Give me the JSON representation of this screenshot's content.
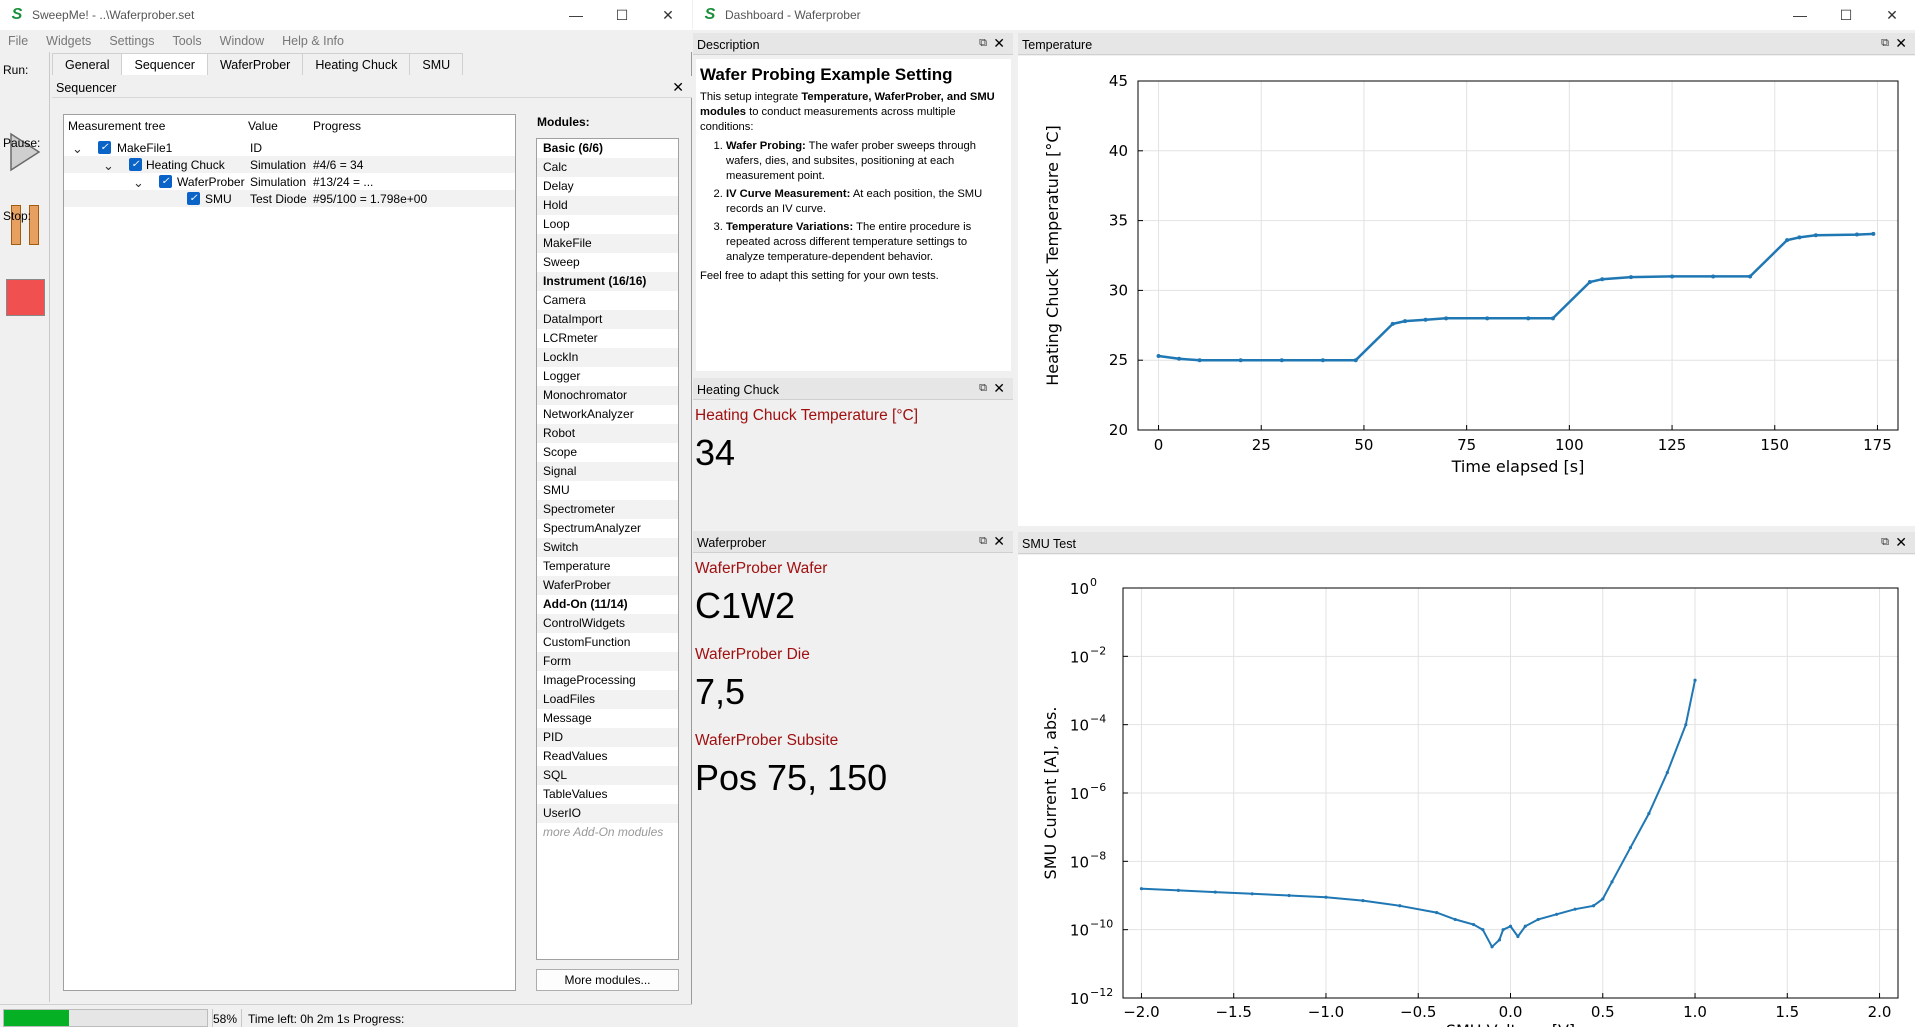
{
  "left_window": {
    "title": "SweepMe! - ..\\Waferprober.set",
    "menu": [
      "File",
      "Widgets",
      "Settings",
      "Tools",
      "Window",
      "Help & Info"
    ],
    "run_label": "Run:",
    "pause_label": "Pause:",
    "stop_label": "Stop:",
    "tabs": [
      {
        "label": "General",
        "active": false
      },
      {
        "label": "Sequencer",
        "active": true
      },
      {
        "label": "WaferProber",
        "active": false
      },
      {
        "label": "Heating Chuck",
        "active": false
      },
      {
        "label": "SMU",
        "active": false
      }
    ],
    "sequencer_title": "Sequencer",
    "tree": {
      "headers": {
        "name": "Measurement tree",
        "value": "Value",
        "progress": "Progress"
      },
      "rows": [
        {
          "name": "MakeFile1",
          "value": "ID",
          "progress": ""
        },
        {
          "name": "Heating Chuck",
          "value": "Simulation",
          "progress": "#4/6 = 34"
        },
        {
          "name": "WaferProber",
          "value": "Simulation",
          "progress": "#13/24 = ..."
        },
        {
          "name": "SMU",
          "value": "Test Diode",
          "progress": "#95/100 = 1.798e+00"
        }
      ]
    },
    "modules_title": "Modules:",
    "modules": [
      {
        "label": "Basic (6/6)",
        "category": true
      },
      {
        "label": "Calc"
      },
      {
        "label": "Delay"
      },
      {
        "label": "Hold"
      },
      {
        "label": "Loop"
      },
      {
        "label": "MakeFile"
      },
      {
        "label": "Sweep"
      },
      {
        "label": "Instrument (16/16)",
        "category": true
      },
      {
        "label": "Camera"
      },
      {
        "label": "DataImport"
      },
      {
        "label": "LCRmeter"
      },
      {
        "label": "LockIn"
      },
      {
        "label": "Logger"
      },
      {
        "label": "Monochromator"
      },
      {
        "label": "NetworkAnalyzer"
      },
      {
        "label": "Robot"
      },
      {
        "label": "Scope"
      },
      {
        "label": "Signal"
      },
      {
        "label": "SMU"
      },
      {
        "label": "Spectrometer"
      },
      {
        "label": "SpectrumAnalyzer"
      },
      {
        "label": "Switch"
      },
      {
        "label": "Temperature"
      },
      {
        "label": "WaferProber"
      },
      {
        "label": "Add-On (11/14)",
        "category": true
      },
      {
        "label": "ControlWidgets"
      },
      {
        "label": "CustomFunction"
      },
      {
        "label": "Form"
      },
      {
        "label": "ImageProcessing"
      },
      {
        "label": "LoadFiles"
      },
      {
        "label": "Message"
      },
      {
        "label": "PID"
      },
      {
        "label": "ReadValues"
      },
      {
        "label": "SQL"
      },
      {
        "label": "TableValues"
      },
      {
        "label": "UserIO"
      },
      {
        "label": "more Add-On modules",
        "more": true
      }
    ],
    "more_modules_button": "More modules...",
    "status": {
      "progress_percent": 58,
      "progress_text": "58%",
      "time_left": "Time left: 0h 2m 1s",
      "progress_label": "Progress:"
    }
  },
  "right_window": {
    "title": "Dashboard - Waferprober",
    "description": {
      "panel_title": "Description",
      "heading": "Wafer Probing Example Setting",
      "intro_prefix": "This setup integrate ",
      "intro_bold": "Temperature, WaferProber, and SMU modules",
      "intro_suffix": " to conduct measurements across multiple conditions:",
      "items": [
        {
          "bold": "Wafer Probing:",
          "text": " The wafer prober sweeps through wafers, dies, and subsites, positioning at each measurement point."
        },
        {
          "bold": "IV Curve Measurement:",
          "text": " At each position, the SMU records an IV curve."
        },
        {
          "bold": "Temperature Variations:",
          "text": " The entire procedure is repeated across different temperature settings to analyze temperature-dependent behavior."
        }
      ],
      "outro": "Feel free to adapt this setting for your own tests."
    },
    "heating_chuck": {
      "panel_title": "Heating Chuck",
      "label": "Heating Chuck Temperature [°C]",
      "value": "34"
    },
    "waferprober": {
      "panel_title": "Waferprober",
      "wafer_label": "WaferProber Wafer",
      "wafer_value": "C1W2",
      "die_label": "WaferProber Die",
      "die_value": "7,5",
      "subsite_label": "WaferProber Subsite",
      "subsite_value": "Pos 75, 150"
    },
    "temperature_panel_title": "Temperature",
    "smu_panel_title": "SMU Test"
  },
  "chart_data": [
    {
      "type": "line",
      "title": "",
      "xlabel": "Time elapsed [s]",
      "ylabel": "Heating Chuck Temperature [°C]",
      "xlim": [
        -5,
        180
      ],
      "ylim": [
        20,
        45
      ],
      "xticks": [
        0,
        25,
        50,
        75,
        100,
        125,
        150,
        175
      ],
      "yticks": [
        20,
        25,
        30,
        35,
        40,
        45
      ],
      "xtick_labels": [
        "0",
        "25",
        "50",
        "75",
        "100",
        "125",
        "150",
        "175"
      ],
      "ytick_labels": [
        "20",
        "25",
        "30",
        "35",
        "40",
        "45"
      ],
      "grid": true,
      "color": "#1f77b4",
      "x": [
        0,
        5,
        10,
        20,
        30,
        40,
        48,
        57,
        60,
        65,
        70,
        80,
        90,
        96,
        105,
        108,
        115,
        125,
        135,
        144,
        153,
        156,
        160,
        170,
        174
      ],
      "y": [
        25.3,
        25.1,
        25.0,
        25.0,
        25.0,
        25.0,
        25.0,
        27.6,
        27.8,
        27.9,
        28.0,
        28.0,
        28.0,
        28.0,
        30.6,
        30.8,
        30.95,
        31.0,
        31.0,
        31.0,
        33.6,
        33.8,
        33.95,
        34.0,
        34.05
      ]
    },
    {
      "type": "line",
      "title": "",
      "xlabel": "SMU Voltage [V]",
      "ylabel": "SMU Current [A], abs.",
      "xlim": [
        -2.1,
        2.1
      ],
      "yscale": "log",
      "ylim_log10": [
        -12,
        0
      ],
      "xticks": [
        -2.0,
        -1.5,
        -1.0,
        -0.5,
        0.0,
        0.5,
        1.0,
        1.5,
        2.0
      ],
      "xtick_labels": [
        "−2.0",
        "−1.5",
        "−1.0",
        "−0.5",
        "0.0",
        "0.5",
        "1.0",
        "1.5",
        "2.0"
      ],
      "ytick_exponents": [
        0,
        -2,
        -4,
        -6,
        -8,
        -10,
        -12
      ],
      "ytick_base": "10",
      "grid": true,
      "color": "#1f77b4",
      "x": [
        -2.0,
        -1.8,
        -1.6,
        -1.4,
        -1.2,
        -1.0,
        -0.8,
        -0.6,
        -0.4,
        -0.3,
        -0.2,
        -0.15,
        -0.1,
        -0.06,
        -0.04,
        0.0,
        0.04,
        0.08,
        0.15,
        0.25,
        0.35,
        0.45,
        0.5,
        0.55,
        0.65,
        0.75,
        0.85,
        0.95,
        1.0
      ],
      "y_log10": [
        -8.8,
        -8.85,
        -8.9,
        -8.95,
        -9.0,
        -9.05,
        -9.15,
        -9.3,
        -9.5,
        -9.7,
        -9.85,
        -10.0,
        -10.5,
        -10.3,
        -10.0,
        -9.9,
        -10.2,
        -9.9,
        -9.7,
        -9.55,
        -9.4,
        -9.3,
        -9.1,
        -8.6,
        -7.6,
        -6.6,
        -5.4,
        -4.0,
        -2.7
      ]
    }
  ]
}
